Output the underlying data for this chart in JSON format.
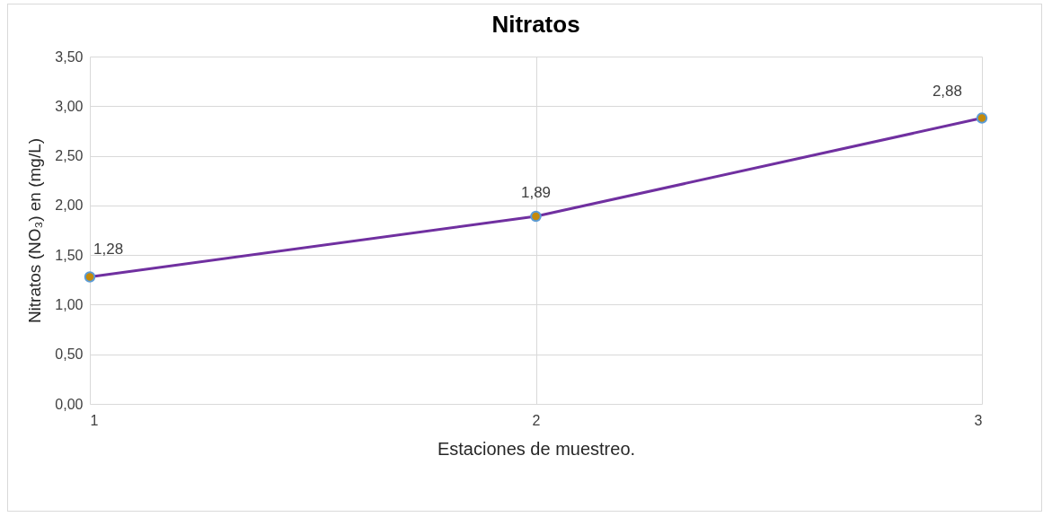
{
  "chart_data": {
    "type": "line",
    "title": "Nitratos",
    "xlabel": "Estaciones de muestreo.",
    "ylabel": "Nitratos (NO₃)  en (mg/L)",
    "x": [
      1,
      2,
      3
    ],
    "series": [
      {
        "color": "#7030a0",
        "values": [
          1.28,
          1.89,
          2.88
        ],
        "value_labels": [
          "1,28",
          "1,89",
          "2,88"
        ]
      }
    ],
    "xlim": [
      1,
      3
    ],
    "xticks": [
      1,
      2,
      3
    ],
    "ylim": [
      0,
      3.5
    ],
    "yticks": [
      {
        "value": 0,
        "label": "0,00"
      },
      {
        "value": 0.5,
        "label": "0,50"
      },
      {
        "value": 1,
        "label": "1,00"
      },
      {
        "value": 1.5,
        "label": "1,50"
      },
      {
        "value": 2,
        "label": "2,00"
      },
      {
        "value": 2.5,
        "label": "2,50"
      },
      {
        "value": 3,
        "label": "3,00"
      },
      {
        "value": 3.5,
        "label": "3,50"
      }
    ],
    "grid": true,
    "marker": "circle",
    "line_style": "solid"
  }
}
